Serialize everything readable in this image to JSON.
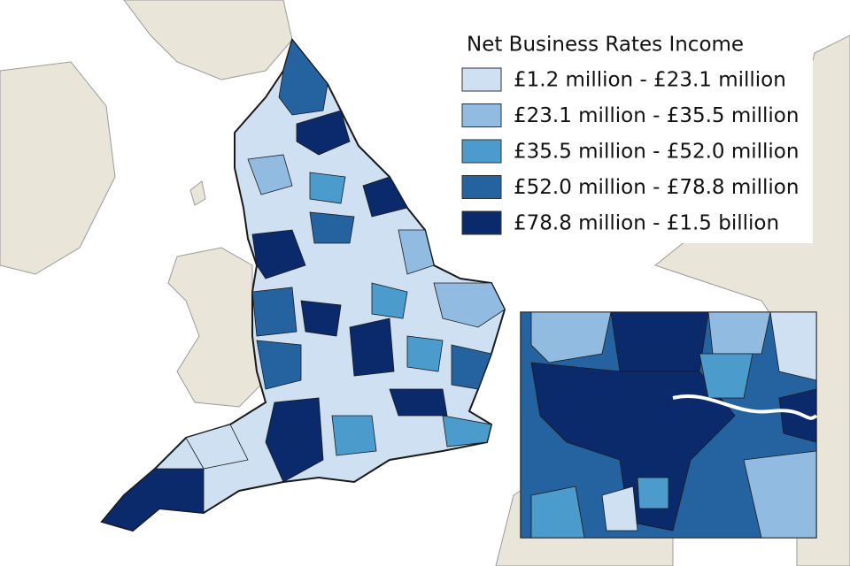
{
  "legend": {
    "title": "Net Business Rates Income",
    "items": [
      {
        "label": "£1.2 million - £23.1 million",
        "color": "#cfe0f2"
      },
      {
        "label": "£23.1 million - £35.5 million",
        "color": "#92bbe2"
      },
      {
        "label": "£35.5 million - £52.0 million",
        "color": "#4c9bcd"
      },
      {
        "label": "£52.0 million - £78.8 million",
        "color": "#2563a0"
      },
      {
        "label": "£78.8 million - £1.5 billion",
        "color": "#0a2a6c"
      }
    ]
  }
}
